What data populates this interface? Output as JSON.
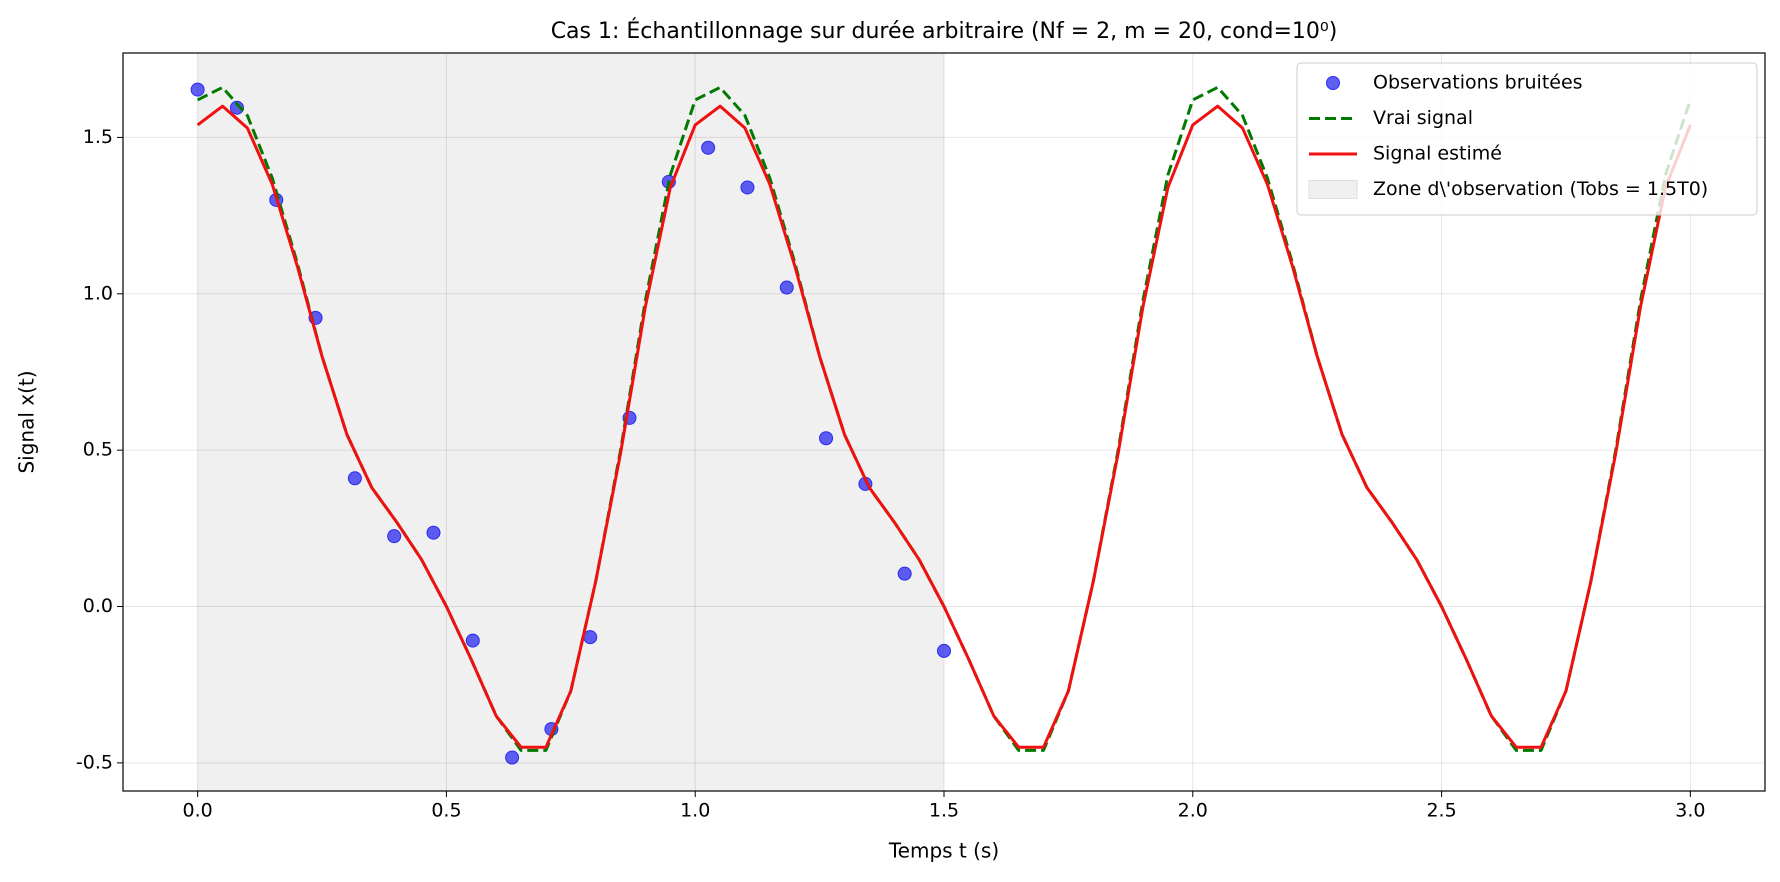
{
  "chart_data": {
    "type": "line",
    "title": "Cas 1: Échantillonnage sur durée arbitraire (Nf = 2, m = 20, cond=10⁰)",
    "x_label": "Temps t (s)",
    "y_label": "Signal x(t)",
    "xlim": [
      -0.15,
      3.15
    ],
    "ylim": [
      -0.59,
      1.77
    ],
    "xticks": [
      {
        "value": 0,
        "label": "0.0"
      },
      0.5,
      {
        "value": 1,
        "label": "1.0"
      },
      1.5,
      {
        "value": 2,
        "label": "2.0"
      },
      2.5,
      {
        "value": 3,
        "label": "3.0"
      }
    ],
    "yticks": [
      -0.5,
      {
        "value": 0,
        "label": "0.0"
      },
      0.5,
      {
        "value": 1,
        "label": "1.0"
      },
      1.5
    ],
    "grid": true,
    "legend": "upper right",
    "shade": {
      "name": "Zone d\\'observation (Tobs = 1.5T0)",
      "color": "#f0f0f0",
      "range": [
        0,
        1.5
      ]
    },
    "series": [
      {
        "name": "Observations bruitées",
        "style": "markers",
        "color": "#2a2af0",
        "x": [
          0,
          0.079,
          0.158,
          0.237,
          0.316,
          0.395,
          0.474,
          0.553,
          0.632,
          0.711,
          0.789,
          0.868,
          0.947,
          1.026,
          1.105,
          1.184,
          1.263,
          1.342,
          1.421,
          1.5
        ],
        "values": [
          1.653,
          1.595,
          1.3,
          0.923,
          0.41,
          0.225,
          0.236,
          -0.109,
          -0.483,
          -0.392,
          -0.098,
          0.603,
          1.358,
          1.467,
          1.34,
          1.02,
          0.538,
          0.392,
          0.105,
          -0.142
        ]
      },
      {
        "name": "Vrai signal",
        "style": "dashed",
        "color": "#007a00",
        "x": [
          0,
          0.05,
          0.1,
          0.15,
          0.2,
          0.25,
          0.3,
          0.35,
          0.4,
          0.45,
          0.5,
          0.55,
          0.6,
          0.65,
          0.7,
          0.75,
          0.8,
          0.85,
          0.9,
          0.95,
          1,
          1.05,
          1.1,
          1.15,
          1.2,
          1.25,
          1.3,
          1.35,
          1.4,
          1.45,
          1.5,
          1.55,
          1.6,
          1.65,
          1.7,
          1.75,
          1.8,
          1.85,
          1.9,
          1.95,
          2,
          2.05,
          2.1,
          2.15,
          2.2,
          2.25,
          2.3,
          2.35,
          2.4,
          2.45,
          2.5,
          2.55,
          2.6,
          2.65,
          2.7,
          2.75,
          2.8,
          2.85,
          2.9,
          2.95,
          3
        ],
        "values": [
          1.62,
          1.66,
          1.57,
          1.37,
          1.1,
          0.8,
          0.55,
          0.38,
          0.27,
          0.15,
          0.0,
          -0.17,
          -0.35,
          -0.46,
          -0.46,
          -0.27,
          0.08,
          0.5,
          0.98,
          1.38,
          1.62,
          1.66,
          1.57,
          1.37,
          1.1,
          0.8,
          0.55,
          0.38,
          0.27,
          0.15,
          0.0,
          -0.17,
          -0.35,
          -0.46,
          -0.46,
          -0.27,
          0.08,
          0.5,
          0.98,
          1.38,
          1.62,
          1.66,
          1.57,
          1.37,
          1.1,
          0.8,
          0.55,
          0.38,
          0.27,
          0.15,
          0.0,
          -0.17,
          -0.35,
          -0.46,
          -0.46,
          -0.27,
          0.08,
          0.5,
          0.98,
          1.38,
          1.62
        ]
      },
      {
        "name": "Signal estimé",
        "style": "solid",
        "color": "#f01010",
        "x": [
          0,
          0.05,
          0.1,
          0.15,
          0.2,
          0.25,
          0.3,
          0.35,
          0.4,
          0.45,
          0.5,
          0.55,
          0.6,
          0.65,
          0.7,
          0.75,
          0.8,
          0.85,
          0.9,
          0.95,
          1,
          1.05,
          1.1,
          1.15,
          1.2,
          1.25,
          1.3,
          1.35,
          1.4,
          1.45,
          1.5,
          1.55,
          1.6,
          1.65,
          1.7,
          1.75,
          1.8,
          1.85,
          1.9,
          1.95,
          2,
          2.05,
          2.1,
          2.15,
          2.2,
          2.25,
          2.3,
          2.35,
          2.4,
          2.45,
          2.5,
          2.55,
          2.6,
          2.65,
          2.7,
          2.75,
          2.8,
          2.85,
          2.9,
          2.95,
          3
        ],
        "values": [
          1.54,
          1.6,
          1.53,
          1.35,
          1.09,
          0.8,
          0.55,
          0.38,
          0.27,
          0.15,
          0.0,
          -0.17,
          -0.35,
          -0.45,
          -0.45,
          -0.27,
          0.08,
          0.49,
          0.96,
          1.34,
          1.54,
          1.6,
          1.53,
          1.35,
          1.09,
          0.8,
          0.55,
          0.38,
          0.27,
          0.15,
          0.0,
          -0.17,
          -0.35,
          -0.45,
          -0.45,
          -0.27,
          0.08,
          0.49,
          0.96,
          1.34,
          1.54,
          1.6,
          1.53,
          1.35,
          1.09,
          0.8,
          0.55,
          0.38,
          0.27,
          0.15,
          0.0,
          -0.17,
          -0.35,
          -0.45,
          -0.45,
          -0.27,
          0.08,
          0.49,
          0.96,
          1.34,
          1.54
        ]
      }
    ]
  }
}
